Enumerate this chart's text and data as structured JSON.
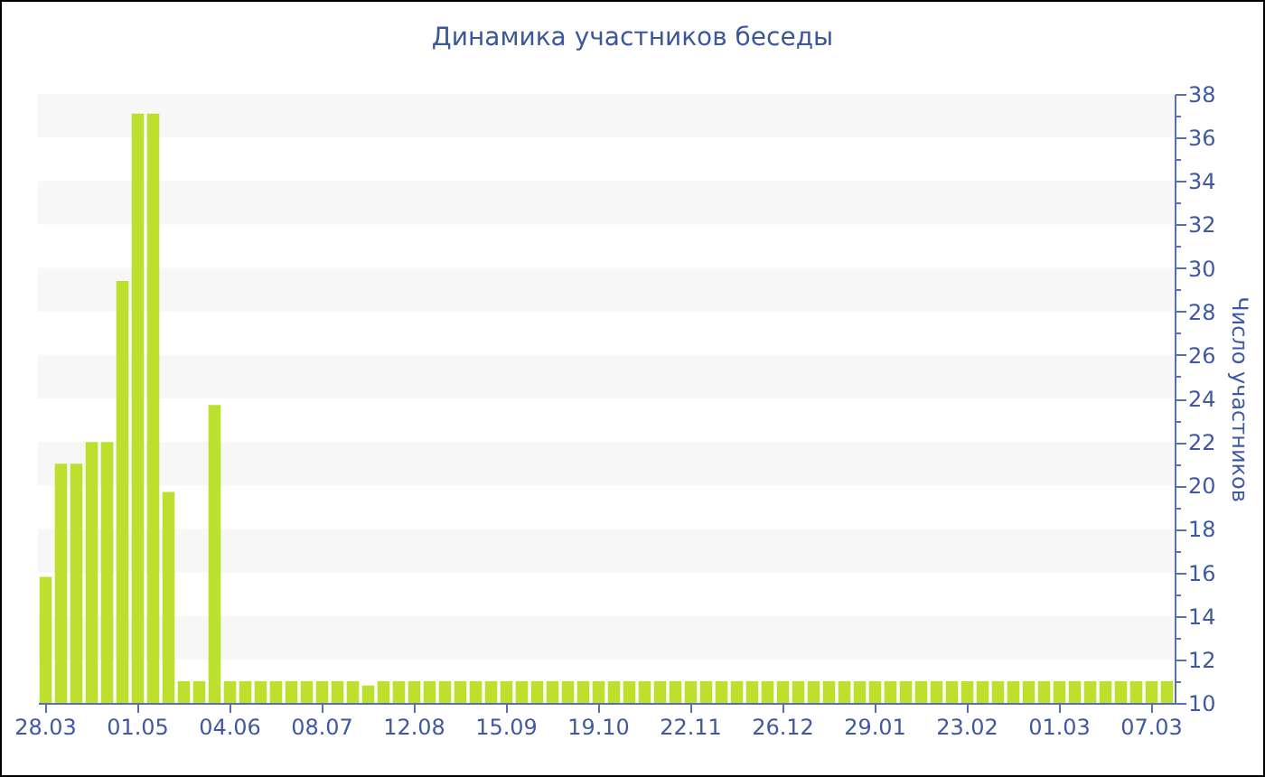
{
  "chart_data": {
    "type": "bar",
    "title": "Динамика участников беседы",
    "ylabel": "Число участников",
    "categories": [
      "28.03",
      null,
      null,
      null,
      null,
      null,
      "01.05",
      null,
      null,
      null,
      null,
      null,
      "04.06",
      null,
      null,
      null,
      null,
      null,
      "08.07",
      null,
      null,
      null,
      null,
      null,
      "12.08",
      null,
      null,
      null,
      null,
      null,
      "15.09",
      null,
      null,
      null,
      null,
      null,
      "19.10",
      null,
      null,
      null,
      null,
      null,
      "22.11",
      null,
      null,
      null,
      null,
      null,
      "26.12",
      null,
      null,
      null,
      null,
      null,
      "29.01",
      null,
      null,
      null,
      null,
      null,
      "23.02",
      null,
      null,
      null,
      null,
      null,
      "01.03",
      null,
      null,
      null,
      null,
      null,
      "07.03",
      null
    ],
    "values": [
      15.8,
      21,
      21,
      22,
      22,
      29.4,
      37.1,
      37.1,
      19.7,
      11,
      11,
      23.7,
      11,
      11,
      11,
      11,
      11,
      11,
      11,
      11,
      11,
      10.8,
      11,
      11,
      11,
      11,
      11,
      11,
      11,
      11,
      11,
      11,
      11,
      11,
      11,
      11,
      11,
      11,
      11,
      11,
      11,
      11,
      11,
      11,
      11,
      11,
      11,
      11,
      11,
      11,
      11,
      11,
      11,
      11,
      11,
      11,
      11,
      11,
      11,
      11,
      11,
      11,
      11,
      11,
      11,
      11,
      11,
      11,
      11,
      11,
      11,
      11,
      11,
      11
    ],
    "color": "#bde02e",
    "ylim": [
      10,
      38
    ],
    "yticks": [
      10,
      {
        "value": 11,
        "label": null
      },
      12,
      {
        "value": 13,
        "label": null
      },
      14,
      {
        "value": 15,
        "label": null
      },
      16,
      {
        "value": 17,
        "label": null
      },
      18,
      {
        "value": 19,
        "label": null
      },
      20,
      {
        "value": 21,
        "label": null
      },
      22,
      {
        "value": 23,
        "label": null
      },
      24,
      {
        "value": 25,
        "label": null
      },
      26,
      {
        "value": 27,
        "label": null
      },
      28,
      {
        "value": 29,
        "label": null
      },
      30,
      {
        "value": 31,
        "label": null
      },
      32,
      {
        "value": 33,
        "label": null
      },
      34,
      {
        "value": 35,
        "label": null
      },
      36,
      {
        "value": 37,
        "label": null
      },
      38
    ],
    "bands": [
      {
        "axis": "y",
        "from": 12,
        "to": 14,
        "color": "#f7f7f7"
      },
      {
        "axis": "y",
        "from": 16,
        "to": 18,
        "color": "#f7f7f7"
      },
      {
        "axis": "y",
        "from": 20,
        "to": 22,
        "color": "#f7f7f7"
      },
      {
        "axis": "y",
        "from": 24,
        "to": 26,
        "color": "#f7f7f7"
      },
      {
        "axis": "y",
        "from": 28,
        "to": 30,
        "color": "#f7f7f7"
      },
      {
        "axis": "y",
        "from": 32,
        "to": 34,
        "color": "#f7f7f7"
      },
      {
        "axis": "y",
        "from": 36,
        "to": 38,
        "color": "#f7f7f7"
      }
    ]
  }
}
